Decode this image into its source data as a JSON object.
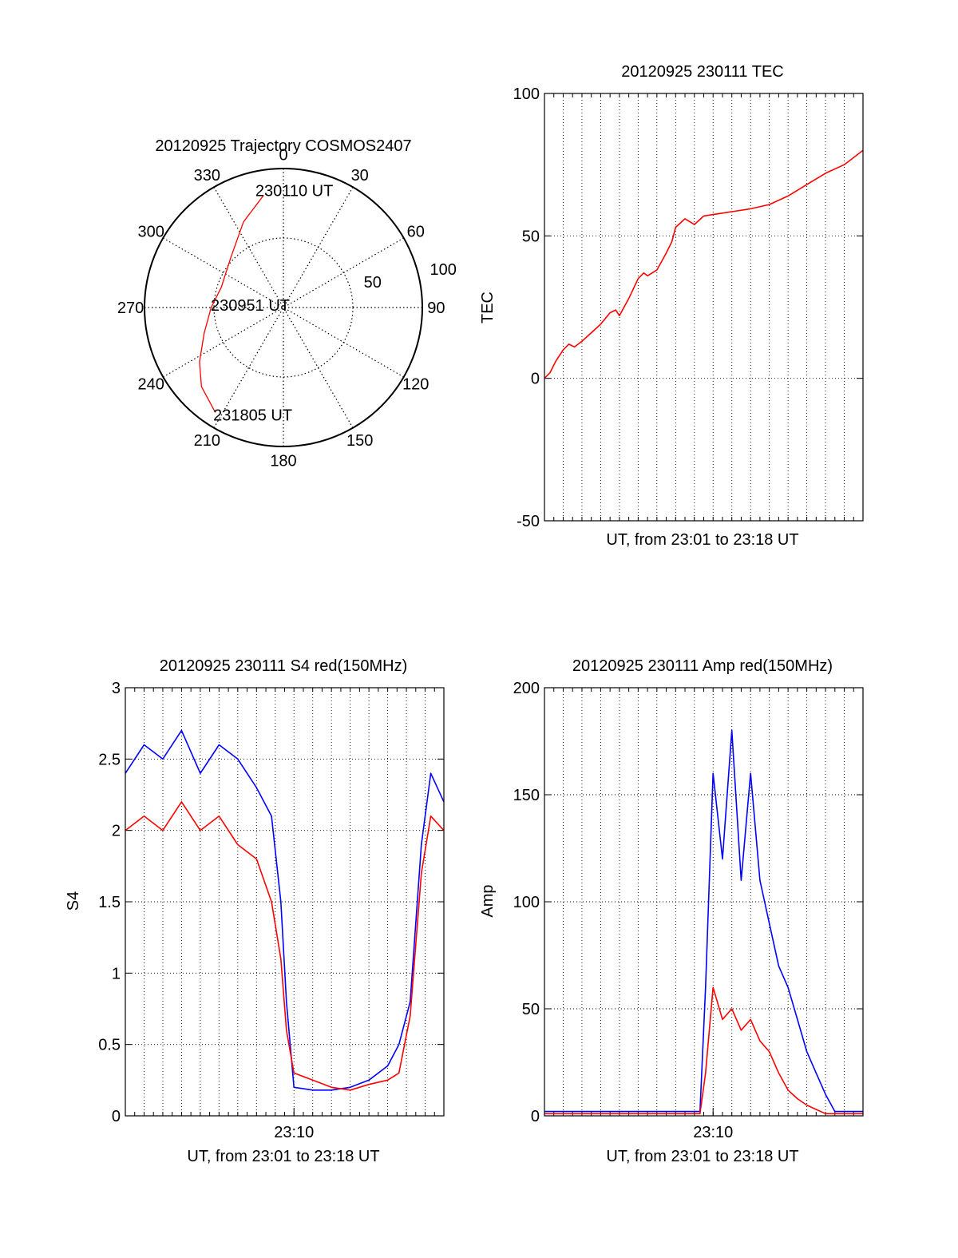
{
  "chart_data": [
    {
      "type": "polar",
      "title": "20120925 Trajectory COSMOS2407",
      "angle_labels": [
        "0",
        "30",
        "60",
        "90",
        "120",
        "150",
        "180",
        "210",
        "240",
        "270",
        "300",
        "330"
      ],
      "radial_labels": [
        "50",
        "100"
      ],
      "r_max": 100,
      "series": [
        {
          "color": "#ff0000",
          "points": [
            {
              "az": 350,
              "r": 82
            },
            {
              "az": 335,
              "r": 68
            },
            {
              "az": 313,
              "r": 52
            },
            {
              "az": 288,
              "r": 47
            },
            {
              "az": 270,
              "r": 52
            },
            {
              "az": 252,
              "r": 60
            },
            {
              "az": 237,
              "r": 72
            },
            {
              "az": 226,
              "r": 82
            },
            {
              "az": 213,
              "r": 90
            }
          ]
        }
      ],
      "annotations": [
        {
          "text": "230110 UT",
          "az": 348,
          "r": 86
        },
        {
          "text": "230951 UT",
          "az": 272,
          "r": 50
        },
        {
          "text": "231805 UT",
          "az": 212,
          "r": 91
        }
      ]
    },
    {
      "type": "line",
      "title": "20120925 230111 TEC",
      "xlabel": "UT, from 23:01 to 23:18 UT",
      "ylabel": "TEC",
      "xlim": [
        0,
        17.0
      ],
      "ylim": [
        -50,
        100
      ],
      "yticks": [
        -50,
        0,
        50,
        100
      ],
      "xticks": [],
      "grid": true,
      "series": [
        {
          "color": "#ff0000",
          "x": [
            0,
            0.3,
            0.6,
            1.0,
            1.3,
            1.6,
            2.0,
            2.5,
            3.0,
            3.5,
            3.8,
            4.0,
            4.5,
            5.0,
            5.3,
            5.5,
            6.0,
            6.5,
            6.8,
            7.0,
            7.5,
            8.0,
            8.5,
            9.0,
            9.5,
            10.0,
            11.0,
            12.0,
            13.0,
            14.0,
            15.0,
            16.0,
            17.0
          ],
          "y": [
            0,
            2,
            6,
            10,
            12,
            11,
            13,
            16,
            19,
            23,
            24,
            22,
            28,
            35,
            37,
            36,
            38,
            44,
            48,
            53,
            56,
            54,
            57,
            57.5,
            58,
            58.5,
            59.5,
            61,
            64,
            68,
            72,
            75,
            80
          ]
        }
      ]
    },
    {
      "type": "line",
      "title": "20120925 230111 S4 red(150MHz)",
      "xlabel": "UT, from 23:01 to 23:18 UT",
      "ylabel": "S4",
      "xlim": [
        0,
        17.0
      ],
      "ylim": [
        0,
        3
      ],
      "yticks": [
        0,
        0.5,
        1,
        1.5,
        2,
        2.5,
        3
      ],
      "xticks": [
        {
          "value": 9.0,
          "label": "23:10"
        }
      ],
      "grid": true,
      "series": [
        {
          "color": "#0000ff",
          "x": [
            0,
            1,
            2,
            3,
            4,
            5,
            6,
            7,
            7.8,
            8.3,
            8.6,
            9.0,
            10,
            11,
            12,
            13,
            14,
            14.6,
            15.2,
            15.8,
            16.3,
            17.0
          ],
          "y": [
            2.4,
            2.6,
            2.5,
            2.7,
            2.4,
            2.6,
            2.5,
            2.3,
            2.1,
            1.5,
            0.8,
            0.2,
            0.18,
            0.18,
            0.2,
            0.25,
            0.35,
            0.5,
            0.8,
            1.9,
            2.4,
            2.2
          ]
        },
        {
          "color": "#ff0000",
          "x": [
            0,
            1,
            2,
            3,
            4,
            5,
            6,
            7,
            7.8,
            8.3,
            8.6,
            9.0,
            10,
            11,
            12,
            13,
            14,
            14.6,
            15.2,
            15.8,
            16.3,
            17.0
          ],
          "y": [
            2.0,
            2.1,
            2.0,
            2.2,
            2.0,
            2.1,
            1.9,
            1.8,
            1.5,
            1.1,
            0.6,
            0.3,
            0.25,
            0.2,
            0.18,
            0.22,
            0.25,
            0.3,
            0.7,
            1.7,
            2.1,
            2.0
          ]
        }
      ]
    },
    {
      "type": "line",
      "title": "20120925 230111 Amp red(150MHz)",
      "xlabel": "UT, from 23:01 to 23:18 UT",
      "ylabel": "Amp",
      "xlim": [
        0,
        17.0
      ],
      "ylim": [
        0,
        200
      ],
      "yticks": [
        0,
        50,
        100,
        150,
        200
      ],
      "xticks": [
        {
          "value": 9.0,
          "label": "23:10"
        }
      ],
      "grid": true,
      "series": [
        {
          "color": "#0000ff",
          "x": [
            0,
            2,
            4,
            6,
            8.3,
            8.6,
            9.0,
            9.5,
            10.0,
            10.5,
            11.0,
            11.5,
            12.0,
            12.5,
            13.0,
            13.5,
            14.0,
            14.5,
            15.0,
            15.5,
            16.0,
            17.0
          ],
          "y": [
            2,
            2,
            2,
            2,
            2,
            60,
            160,
            120,
            180,
            110,
            160,
            110,
            90,
            70,
            60,
            45,
            30,
            20,
            10,
            2,
            2,
            2
          ]
        },
        {
          "color": "#ff0000",
          "x": [
            0,
            2,
            4,
            6,
            8.3,
            8.6,
            9.0,
            9.5,
            10.0,
            10.5,
            11.0,
            11.5,
            12.0,
            12.5,
            13.0,
            13.5,
            14.0,
            14.5,
            15.0,
            17.0
          ],
          "y": [
            1,
            1,
            1,
            1,
            1,
            20,
            60,
            45,
            50,
            40,
            45,
            35,
            30,
            20,
            12,
            8,
            5,
            3,
            1,
            1
          ]
        }
      ]
    }
  ]
}
